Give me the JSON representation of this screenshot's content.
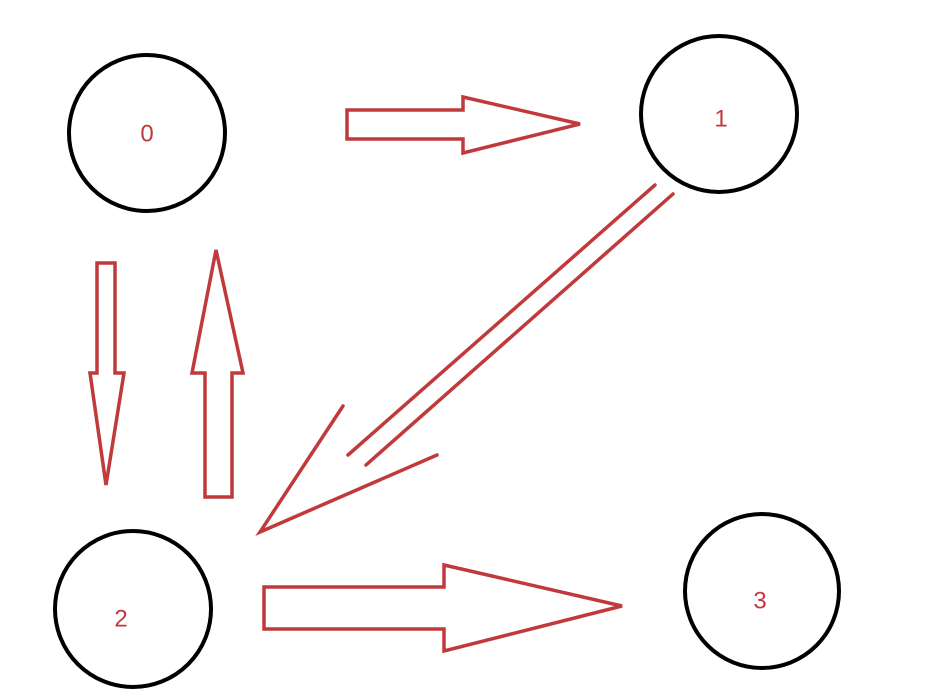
{
  "colors": {
    "node_stroke": "#000000",
    "label": "#c0393b",
    "arrow": "#c0393b",
    "background": "#ffffff"
  },
  "nodes": [
    {
      "id": "0",
      "label": "0"
    },
    {
      "id": "1",
      "label": "1"
    },
    {
      "id": "2",
      "label": "2"
    },
    {
      "id": "3",
      "label": "3"
    }
  ],
  "edges": [
    {
      "from": "0",
      "to": "1"
    },
    {
      "from": "0",
      "to": "2"
    },
    {
      "from": "2",
      "to": "0"
    },
    {
      "from": "1",
      "to": "2"
    },
    {
      "from": "2",
      "to": "3"
    }
  ]
}
